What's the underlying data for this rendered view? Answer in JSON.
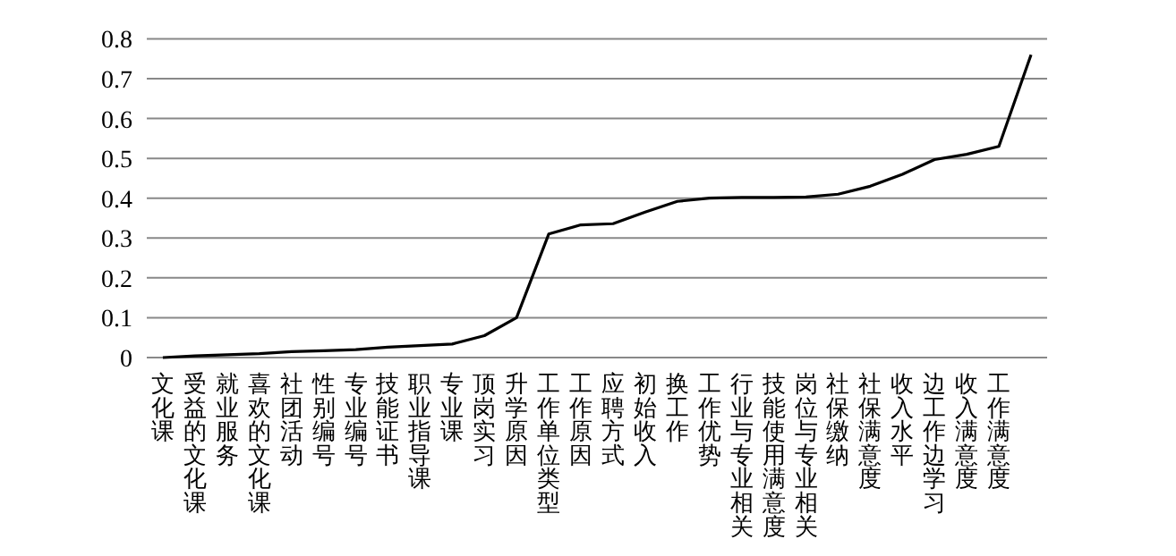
{
  "chart_data": {
    "type": "line",
    "categories": [
      "文化课",
      "受益的文化课",
      "就业服务",
      "喜欢的文化课",
      "社团活动",
      "性别编号",
      "专业编号",
      "技能证书",
      "职业指导课",
      "专业课",
      "顶岗实习",
      "升学原因",
      "工作单位类型",
      "工作原因",
      "应聘方式",
      "初始收入",
      "换工作",
      "工作优势",
      "行业与专业相关",
      "技能使用满意度",
      "岗位与专业相关",
      "社保缴纳",
      "社保满意度",
      "收入水平",
      "边工作边学习",
      "收入满意度",
      "工作满意度",
      null
    ],
    "series": [
      {
        "color": "#000000",
        "values": [
          0.0,
          0.004,
          0.007,
          0.01,
          0.015,
          0.017,
          0.02,
          0.026,
          0.03,
          0.034,
          0.055,
          0.1,
          0.31,
          0.333,
          0.336,
          0.365,
          0.392,
          0.4,
          0.402,
          0.402,
          0.403,
          0.41,
          0.43,
          0.46,
          0.497,
          0.51,
          0.53,
          0.76
        ]
      }
    ],
    "ylim": [
      0,
      0.8
    ],
    "yticks": [
      0,
      0.1,
      0.2,
      0.3,
      0.4,
      0.5,
      0.6,
      0.7,
      0.8
    ],
    "grid": "y",
    "marker": "none",
    "line_style": "solid"
  }
}
